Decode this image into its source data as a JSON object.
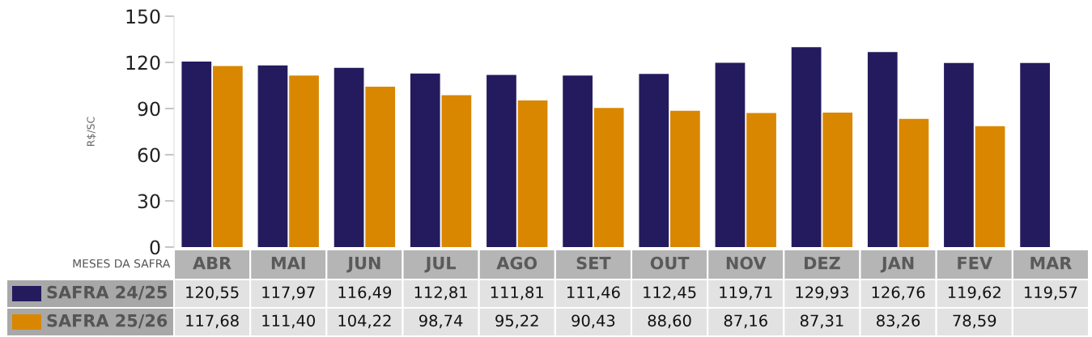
{
  "chart_data": {
    "type": "bar",
    "ylabel": "R$/SC",
    "xlabel": "MESES DA SAFRA",
    "categories": [
      "ABR",
      "MAI",
      "JUN",
      "JUL",
      "AGO",
      "SET",
      "OUT",
      "NOV",
      "DEZ",
      "JAN",
      "FEV",
      "MAR"
    ],
    "series": [
      {
        "name": "SAFRA 24/25",
        "color": "#241b5e",
        "values": [
          120.55,
          117.97,
          116.49,
          112.81,
          111.81,
          111.46,
          112.45,
          119.71,
          129.93,
          126.76,
          119.62,
          119.57
        ],
        "value_labels": [
          "120,55",
          "117,97",
          "116,49",
          "112,81",
          "111,81",
          "111,46",
          "112,45",
          "119,71",
          "129,93",
          "126,76",
          "119,62",
          "119,57"
        ]
      },
      {
        "name": "SAFRA 25/26",
        "color": "#d98700",
        "values": [
          117.68,
          111.4,
          104.22,
          98.74,
          95.22,
          90.43,
          88.6,
          87.16,
          87.31,
          83.26,
          78.59,
          null
        ],
        "value_labels": [
          "117,68",
          "111,40",
          "104,22",
          "98,74",
          "95,22",
          "90,43",
          "88,60",
          "87,16",
          "87,31",
          "83,26",
          "78,59",
          null
        ]
      }
    ],
    "ylim": [
      0,
      150
    ],
    "yticks": [
      0,
      30,
      60,
      90,
      120,
      150
    ],
    "grid": false,
    "legend": "bottom left"
  }
}
